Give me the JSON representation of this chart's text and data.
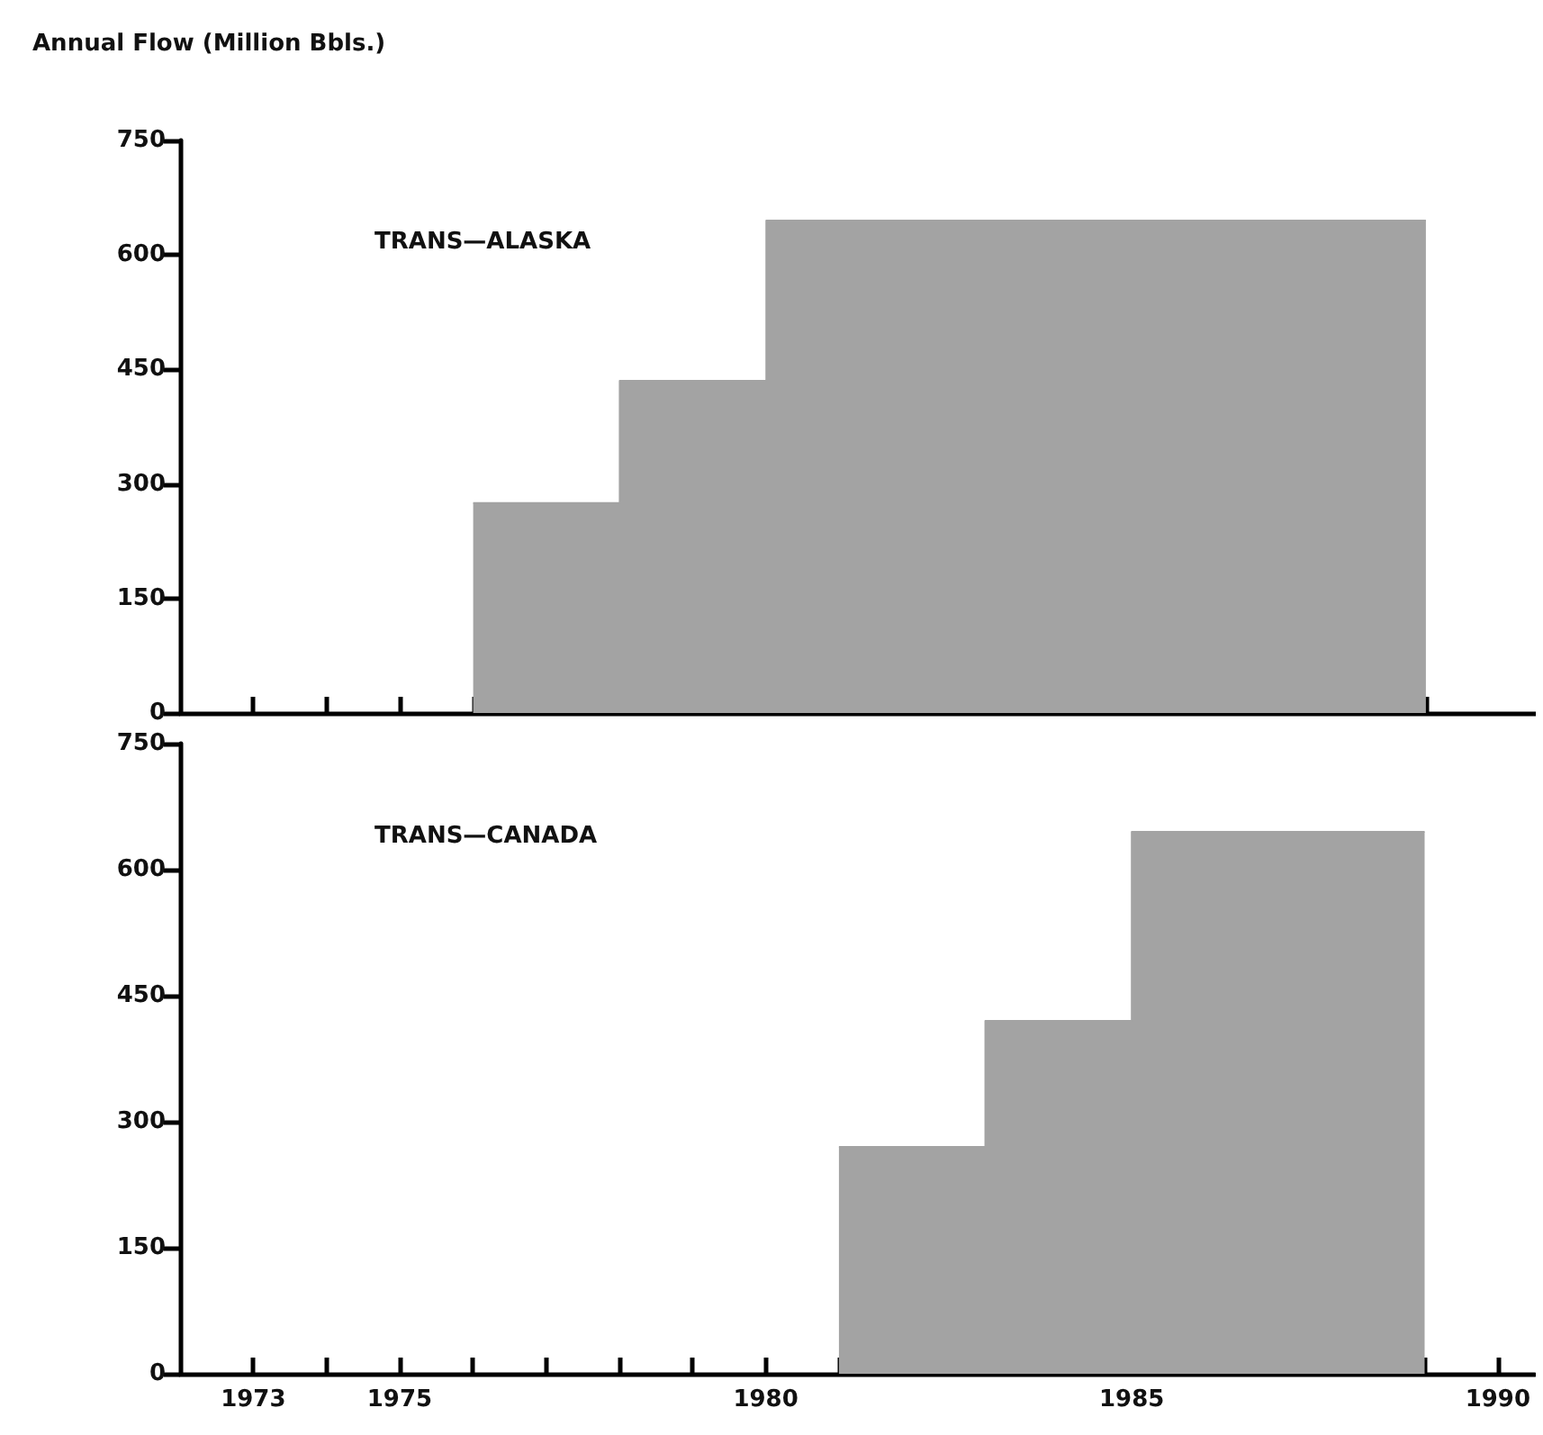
{
  "chart_data": [
    {
      "type": "area",
      "ylabel": "Annual Flow (Million Bbls.)",
      "annotations": [
        "TRANS—ALASKA"
      ],
      "series": [
        {
          "color": "#a3a3a3",
          "x": [
            1976,
            1978,
            1978,
            1980,
            1980,
            1989
          ],
          "values": [
            275,
            275,
            435,
            435,
            645,
            645
          ]
        }
      ],
      "xlim": [
        1972,
        1990.5
      ],
      "xticks": [
        {
          "value": 1973,
          "label": null
        },
        {
          "value": 1974,
          "label": null
        },
        {
          "value": 1975,
          "label": null
        },
        {
          "value": 1976,
          "label": null
        },
        {
          "value": 1977,
          "label": null
        },
        {
          "value": 1978,
          "label": null
        },
        {
          "value": 1979,
          "label": null
        },
        {
          "value": 1980,
          "label": null
        },
        {
          "value": 1981,
          "label": null
        },
        {
          "value": 1982,
          "label": null
        },
        {
          "value": 1983,
          "label": null
        },
        {
          "value": 1984,
          "label": null
        },
        {
          "value": 1985,
          "label": null
        },
        {
          "value": 1986,
          "label": null
        },
        {
          "value": 1987,
          "label": null
        },
        {
          "value": 1988,
          "label": null
        },
        {
          "value": 1989,
          "label": null
        }
      ],
      "ylim": [
        0,
        750
      ],
      "yticks": [
        0,
        150,
        300,
        450,
        600,
        750
      ],
      "tick_labels": "y",
      "grid": false
    },
    {
      "type": "area",
      "annotations": [
        "TRANS—CANADA"
      ],
      "series": [
        {
          "color": "#a3a3a3",
          "x": [
            1981,
            1983,
            1983,
            1985,
            1985,
            1989
          ],
          "values": [
            270,
            270,
            420,
            420,
            645,
            645
          ]
        }
      ],
      "xlim": [
        1972,
        1990.5
      ],
      "xticks": [
        1973,
        {
          "value": 1974,
          "label": null
        },
        1975,
        {
          "value": 1976,
          "label": null
        },
        {
          "value": 1977,
          "label": null
        },
        {
          "value": 1978,
          "label": null
        },
        {
          "value": 1979,
          "label": null
        },
        1980,
        {
          "value": 1981,
          "label": null
        },
        {
          "value": 1982,
          "label": null
        },
        {
          "value": 1983,
          "label": null
        },
        {
          "value": 1984,
          "label": null
        },
        1985,
        {
          "value": 1986,
          "label": null
        },
        {
          "value": 1987,
          "label": null
        },
        {
          "value": 1988,
          "label": null
        },
        {
          "value": 1989,
          "label": null
        },
        1990
      ],
      "ylim": [
        0,
        750
      ],
      "yticks": [
        0,
        150,
        300,
        450,
        600,
        750
      ],
      "grid": false
    }
  ]
}
